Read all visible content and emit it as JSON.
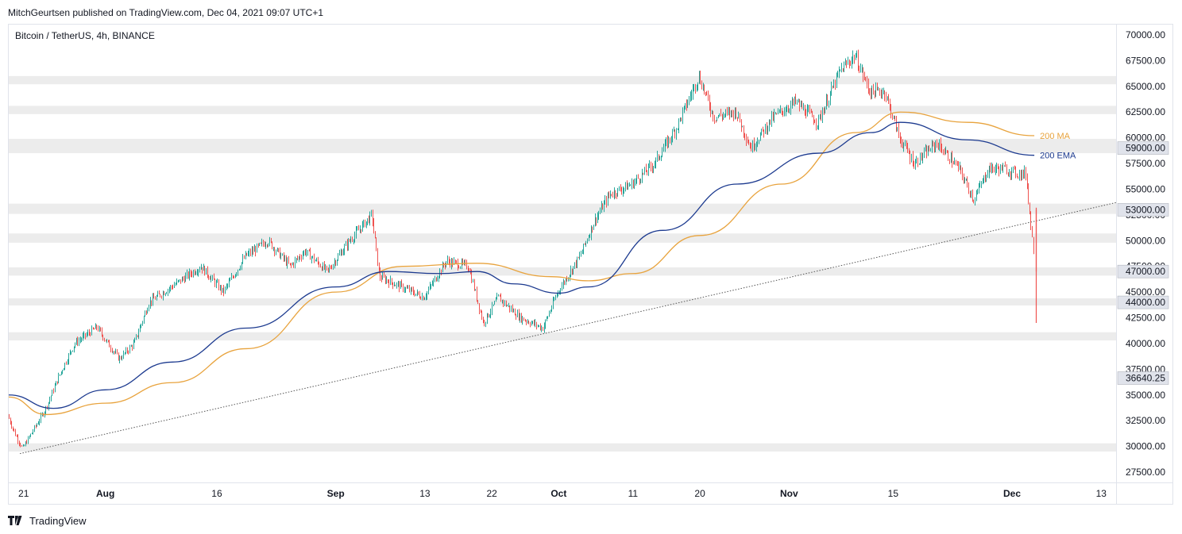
{
  "header": {
    "publish_note": "MitchGeurtsen published on TradingView.com, Dec 04, 2021 09:07 UTC+1"
  },
  "chart": {
    "symbol_label": "Bitcoin / TetherUS, 4h, BINANCE"
  },
  "footer": {
    "brand": "TradingView"
  },
  "colors": {
    "up": "#26a69a",
    "down": "#ef5350",
    "ma": "#e8a33d",
    "ema": "#1c3a8f",
    "zone": "#ececec",
    "trendline": "#555555"
  },
  "chart_data": {
    "type": "candlestick",
    "interval": "4h",
    "y_axis": {
      "min": 26500,
      "max": 71000,
      "ticks": [
        "70000.00",
        "67500.00",
        "65000.00",
        "62500.00",
        "60000.00",
        "57500.00",
        "55000.00",
        "52500.00",
        "50000.00",
        "47500.00",
        "45000.00",
        "42500.00",
        "40000.00",
        "37500.00",
        "35000.00",
        "32500.00",
        "30000.00",
        "27500.00"
      ]
    },
    "x_axis": {
      "start": "2021-07-19",
      "end": "2021-12-15",
      "tick_labels": [
        {
          "label": "21",
          "date": "2021-07-21"
        },
        {
          "label": "Aug",
          "date": "2021-08-01"
        },
        {
          "label": "16",
          "date": "2021-08-16"
        },
        {
          "label": "Sep",
          "date": "2021-09-01"
        },
        {
          "label": "13",
          "date": "2021-09-13"
        },
        {
          "label": "22",
          "date": "2021-09-22"
        },
        {
          "label": "Oct",
          "date": "2021-10-01"
        },
        {
          "label": "11",
          "date": "2021-10-11"
        },
        {
          "label": "20",
          "date": "2021-10-20"
        },
        {
          "label": "Nov",
          "date": "2021-11-01"
        },
        {
          "label": "15",
          "date": "2021-11-15"
        },
        {
          "label": "Dec",
          "date": "2021-12-01"
        },
        {
          "label": "13",
          "date": "2021-12-13"
        }
      ]
    },
    "levels": [
      {
        "price": 59000,
        "label": "59000.00"
      },
      {
        "price": 53000,
        "label": "53000.00"
      },
      {
        "price": 47000,
        "label": "47000.00"
      },
      {
        "price": 44000,
        "label": "44000.00"
      },
      {
        "price": 36640.25,
        "label": "36640.25"
      }
    ],
    "zones": [
      {
        "low": 65200,
        "high": 66000
      },
      {
        "low": 62300,
        "high": 63100
      },
      {
        "low": 58500,
        "high": 59900
      },
      {
        "low": 52600,
        "high": 53600
      },
      {
        "low": 49800,
        "high": 50700
      },
      {
        "low": 46600,
        "high": 47400
      },
      {
        "low": 43700,
        "high": 44400
      },
      {
        "low": 40300,
        "high": 41100
      },
      {
        "low": 29500,
        "high": 30300
      }
    ],
    "trendline": [
      {
        "date": "2021-07-20T12:00",
        "price": 29300
      },
      {
        "date": "2021-12-15T00:00",
        "price": 53700
      }
    ],
    "price_path": [
      {
        "date": "2021-07-19",
        "price": 33000
      },
      {
        "date": "2021-07-20",
        "price": 31200
      },
      {
        "date": "2021-07-21",
        "price": 29800
      },
      {
        "date": "2021-07-24",
        "price": 33500
      },
      {
        "date": "2021-07-26",
        "price": 37000
      },
      {
        "date": "2021-07-28",
        "price": 40000
      },
      {
        "date": "2021-07-31",
        "price": 41600
      },
      {
        "date": "2021-08-01",
        "price": 40500
      },
      {
        "date": "2021-08-03",
        "price": 38500
      },
      {
        "date": "2021-08-05",
        "price": 40000
      },
      {
        "date": "2021-08-07",
        "price": 44000
      },
      {
        "date": "2021-08-10",
        "price": 45500
      },
      {
        "date": "2021-08-14",
        "price": 47500
      },
      {
        "date": "2021-08-17",
        "price": 45000
      },
      {
        "date": "2021-08-20",
        "price": 48500
      },
      {
        "date": "2021-08-23",
        "price": 50000
      },
      {
        "date": "2021-08-26",
        "price": 47500
      },
      {
        "date": "2021-08-28",
        "price": 49000
      },
      {
        "date": "2021-08-31",
        "price": 47000
      },
      {
        "date": "2021-09-03",
        "price": 50000
      },
      {
        "date": "2021-09-06",
        "price": 52500
      },
      {
        "date": "2021-09-07",
        "price": 46500
      },
      {
        "date": "2021-09-10",
        "price": 45500
      },
      {
        "date": "2021-09-13",
        "price": 44500
      },
      {
        "date": "2021-09-16",
        "price": 48000
      },
      {
        "date": "2021-09-19",
        "price": 47500
      },
      {
        "date": "2021-09-21",
        "price": 42000
      },
      {
        "date": "2021-09-23",
        "price": 44500
      },
      {
        "date": "2021-09-26",
        "price": 42500
      },
      {
        "date": "2021-09-29",
        "price": 41500
      },
      {
        "date": "2021-10-01",
        "price": 45000
      },
      {
        "date": "2021-10-04",
        "price": 48500
      },
      {
        "date": "2021-10-06",
        "price": 52000
      },
      {
        "date": "2021-10-08",
        "price": 54500
      },
      {
        "date": "2021-10-11",
        "price": 55500
      },
      {
        "date": "2021-10-14",
        "price": 57500
      },
      {
        "date": "2021-10-17",
        "price": 61000
      },
      {
        "date": "2021-10-20",
        "price": 66000
      },
      {
        "date": "2021-10-22",
        "price": 62000
      },
      {
        "date": "2021-10-25",
        "price": 62500
      },
      {
        "date": "2021-10-27",
        "price": 59000
      },
      {
        "date": "2021-10-30",
        "price": 62000
      },
      {
        "date": "2021-11-02",
        "price": 63500
      },
      {
        "date": "2021-11-05",
        "price": 61500
      },
      {
        "date": "2021-11-08",
        "price": 66500
      },
      {
        "date": "2021-11-10",
        "price": 68000
      },
      {
        "date": "2021-11-12",
        "price": 64500
      },
      {
        "date": "2021-11-14",
        "price": 64500
      },
      {
        "date": "2021-11-16",
        "price": 60000
      },
      {
        "date": "2021-11-18",
        "price": 57500
      },
      {
        "date": "2021-11-21",
        "price": 59500
      },
      {
        "date": "2021-11-24",
        "price": 57000
      },
      {
        "date": "2021-11-26",
        "price": 54000
      },
      {
        "date": "2021-11-28",
        "price": 57000
      },
      {
        "date": "2021-11-30",
        "price": 57000
      },
      {
        "date": "2021-12-02",
        "price": 56500
      },
      {
        "date": "2021-12-03",
        "price": 56500
      },
      {
        "date": "2021-12-04",
        "price": 49000
      }
    ],
    "last_candle": {
      "date": "2021-12-04T04:00",
      "open": 53000,
      "high": 53200,
      "low": 42000,
      "close": 47000
    },
    "series": [
      {
        "name": "200 MA",
        "color": "#e8a33d",
        "points": [
          {
            "date": "2021-07-19",
            "value": 34800
          },
          {
            "date": "2021-07-24",
            "value": 33100
          },
          {
            "date": "2021-08-01",
            "value": 34200
          },
          {
            "date": "2021-08-10",
            "value": 36200
          },
          {
            "date": "2021-08-20",
            "value": 39500
          },
          {
            "date": "2021-09-01",
            "value": 45000
          },
          {
            "date": "2021-09-10",
            "value": 47500
          },
          {
            "date": "2021-09-20",
            "value": 47800
          },
          {
            "date": "2021-09-30",
            "value": 46500
          },
          {
            "date": "2021-10-05",
            "value": 46100
          },
          {
            "date": "2021-10-11",
            "value": 46800
          },
          {
            "date": "2021-10-20",
            "value": 50500
          },
          {
            "date": "2021-10-31",
            "value": 55500
          },
          {
            "date": "2021-11-10",
            "value": 60500
          },
          {
            "date": "2021-11-16",
            "value": 62500
          },
          {
            "date": "2021-11-25",
            "value": 61500
          },
          {
            "date": "2021-12-04",
            "value": 60200
          }
        ]
      },
      {
        "name": "200 EMA",
        "color": "#1c3a8f",
        "points": [
          {
            "date": "2021-07-19",
            "value": 35000
          },
          {
            "date": "2021-07-25",
            "value": 33700
          },
          {
            "date": "2021-08-01",
            "value": 35500
          },
          {
            "date": "2021-08-10",
            "value": 38200
          },
          {
            "date": "2021-08-20",
            "value": 41500
          },
          {
            "date": "2021-09-01",
            "value": 45500
          },
          {
            "date": "2021-09-08",
            "value": 47000
          },
          {
            "date": "2021-09-15",
            "value": 46800
          },
          {
            "date": "2021-09-20",
            "value": 47000
          },
          {
            "date": "2021-09-25",
            "value": 45800
          },
          {
            "date": "2021-10-01",
            "value": 44900
          },
          {
            "date": "2021-10-05",
            "value": 45500
          },
          {
            "date": "2021-10-15",
            "value": 51000
          },
          {
            "date": "2021-10-25",
            "value": 55500
          },
          {
            "date": "2021-11-05",
            "value": 58500
          },
          {
            "date": "2021-11-12",
            "value": 60500
          },
          {
            "date": "2021-11-16",
            "value": 61500
          },
          {
            "date": "2021-11-25",
            "value": 59800
          },
          {
            "date": "2021-12-04",
            "value": 58300
          }
        ]
      }
    ]
  }
}
